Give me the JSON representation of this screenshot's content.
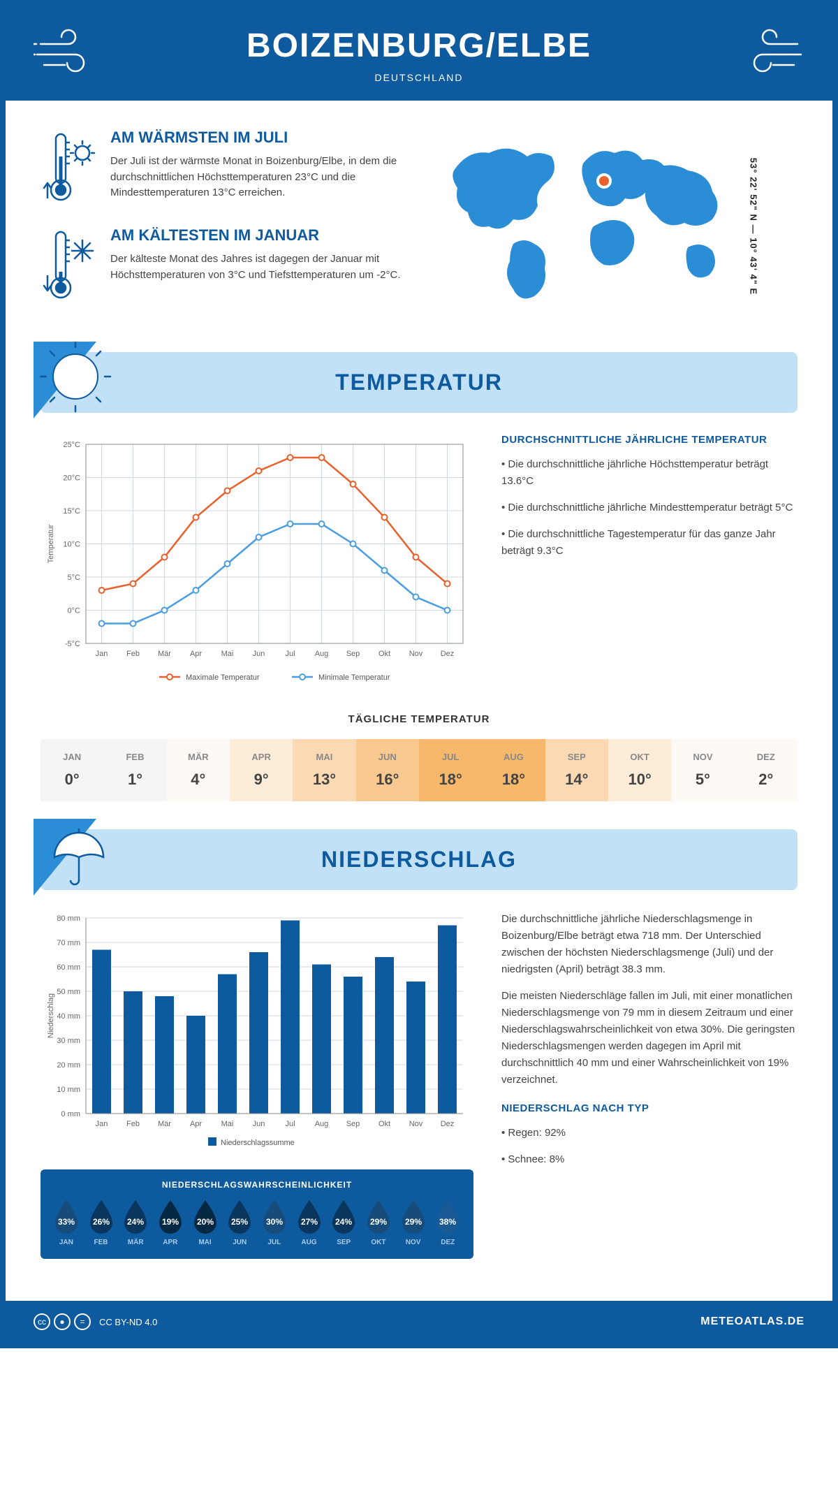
{
  "header": {
    "title": "BOIZENBURG/ELBE",
    "subtitle": "DEUTSCHLAND"
  },
  "coords": "53° 22' 52\" N — 10° 43' 4\" E",
  "facts": {
    "warm": {
      "title": "AM WÄRMSTEN IM JULI",
      "text": "Der Juli ist der wärmste Monat in Boizenburg/Elbe, in dem die durchschnittlichen Höchsttemperaturen 23°C und die Mindesttemperaturen 13°C erreichen."
    },
    "cold": {
      "title": "AM KÄLTESTEN IM JANUAR",
      "text": "Der kälteste Monat des Jahres ist dagegen der Januar mit Höchsttemperaturen von 3°C und Tiefsttemperaturen um -2°C."
    }
  },
  "colors": {
    "primary": "#0d5a9e",
    "banner_bg": "#c2e1f7",
    "max_line": "#e8602c",
    "min_line": "#4a9de0",
    "grid": "#d0d8e0",
    "bar_fill": "#0d5a9e"
  },
  "temperature": {
    "banner_title": "TEMPERATUR",
    "chart": {
      "months": [
        "Jan",
        "Feb",
        "Mär",
        "Apr",
        "Mai",
        "Jun",
        "Jul",
        "Aug",
        "Sep",
        "Okt",
        "Nov",
        "Dez"
      ],
      "max_values": [
        3,
        4,
        8,
        14,
        18,
        21,
        23,
        23,
        19,
        14,
        8,
        4
      ],
      "min_values": [
        -2,
        -2,
        0,
        3,
        7,
        11,
        13,
        13,
        10,
        6,
        2,
        0
      ],
      "ylabel": "Temperatur",
      "ymin": -5,
      "ymax": 25,
      "ytick_step": 5,
      "ytick_labels": [
        "-5°C",
        "0°C",
        "5°C",
        "10°C",
        "15°C",
        "20°C",
        "25°C"
      ],
      "legend_max": "Maximale Temperatur",
      "legend_min": "Minimale Temperatur"
    },
    "summary": {
      "title": "DURCHSCHNITTLICHE JÄHRLICHE TEMPERATUR",
      "bullets": [
        "• Die durchschnittliche jährliche Höchsttemperatur beträgt 13.6°C",
        "• Die durchschnittliche jährliche Mindesttemperatur beträgt 5°C",
        "• Die durchschnittliche Tagestemperatur für das ganze Jahr beträgt 9.3°C"
      ]
    },
    "daily": {
      "title": "TÄGLICHE TEMPERATUR",
      "months": [
        "JAN",
        "FEB",
        "MÄR",
        "APR",
        "MAI",
        "JUN",
        "JUL",
        "AUG",
        "SEP",
        "OKT",
        "NOV",
        "DEZ"
      ],
      "values": [
        "0°",
        "1°",
        "4°",
        "9°",
        "13°",
        "16°",
        "18°",
        "18°",
        "14°",
        "10°",
        "5°",
        "2°"
      ],
      "colors": [
        "#f5f5f5",
        "#f5f5f5",
        "#fdfaf5",
        "#fcecd8",
        "#fad9b3",
        "#f9c98f",
        "#f7b86b",
        "#f7b86b",
        "#fad9b3",
        "#fcecd8",
        "#fdfaf5",
        "#fdfaf5"
      ]
    }
  },
  "precipitation": {
    "banner_title": "NIEDERSCHLAG",
    "chart": {
      "months": [
        "Jan",
        "Feb",
        "Mär",
        "Apr",
        "Mai",
        "Jun",
        "Jul",
        "Aug",
        "Sep",
        "Okt",
        "Nov",
        "Dez"
      ],
      "values": [
        67,
        50,
        48,
        40,
        57,
        66,
        79,
        61,
        56,
        64,
        54,
        77
      ],
      "ylabel": "Niederschlag",
      "ymin": 0,
      "ymax": 80,
      "ytick_step": 10,
      "ytick_labels": [
        "0 mm",
        "10 mm",
        "20 mm",
        "30 mm",
        "40 mm",
        "50 mm",
        "60 mm",
        "70 mm",
        "80 mm"
      ],
      "legend": "Niederschlagssumme"
    },
    "text": {
      "p1": "Die durchschnittliche jährliche Niederschlagsmenge in Boizenburg/Elbe beträgt etwa 718 mm. Der Unterschied zwischen der höchsten Niederschlagsmenge (Juli) und der niedrigsten (April) beträgt 38.3 mm.",
      "p2": "Die meisten Niederschläge fallen im Juli, mit einer monatlichen Niederschlagsmenge von 79 mm in diesem Zeitraum und einer Niederschlagswahrscheinlichkeit von etwa 30%. Die geringsten Niederschlagsmengen werden dagegen im April mit durchschnittlich 40 mm und einer Wahrscheinlichkeit von 19% verzeichnet.",
      "type_title": "NIEDERSCHLAG NACH TYP",
      "rain": "• Regen: 92%",
      "snow": "• Schnee: 8%"
    },
    "probability": {
      "title": "NIEDERSCHLAGSWAHRSCHEINLICHKEIT",
      "months": [
        "JAN",
        "FEB",
        "MÄR",
        "APR",
        "MAI",
        "JUN",
        "JUL",
        "AUG",
        "SEP",
        "OKT",
        "NOV",
        "DEZ"
      ],
      "values": [
        "33%",
        "26%",
        "24%",
        "19%",
        "20%",
        "25%",
        "30%",
        "27%",
        "24%",
        "29%",
        "29%",
        "38%"
      ],
      "drop_colors": [
        "#164b7a",
        "#0a355c",
        "#0a355c",
        "#062943",
        "#062943",
        "#0a355c",
        "#164b7a",
        "#0a355c",
        "#0a355c",
        "#164b7a",
        "#164b7a",
        "#1a5a94"
      ]
    }
  },
  "footer": {
    "license": "CC BY-ND 4.0",
    "site": "METEOATLAS.DE"
  }
}
